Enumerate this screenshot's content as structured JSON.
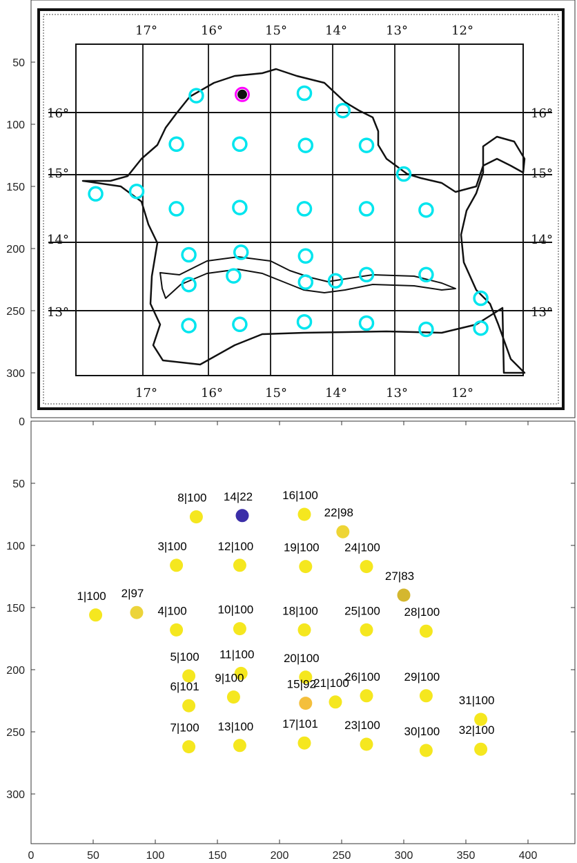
{
  "chart_data": [
    {
      "type": "scatter",
      "description_free": true,
      "y_reversed": true,
      "ylim": [
        0,
        330
      ],
      "y_ticks": [
        50,
        100,
        150,
        200,
        250,
        300
      ],
      "y_tick_labels": [
        "50",
        "100",
        "150",
        "200",
        "250",
        "300"
      ],
      "map_grid_labels_top": [
        "17°",
        "16°",
        "15°",
        "14°",
        "13°",
        "12°"
      ],
      "map_grid_labels_bottom": [
        "17°",
        "16°",
        "15°",
        "14°",
        "13°",
        "12°"
      ],
      "map_grid_labels_left": [
        "16°",
        "15°",
        "14°",
        "13°"
      ],
      "map_grid_labels_right": [
        "16°",
        "15°",
        "14°",
        "13°"
      ],
      "circle_color": "#00e5ee",
      "highlight_color": "#ff00ff",
      "circles": [
        {
          "x": 52,
          "y": 156
        },
        {
          "x": 85,
          "y": 154
        },
        {
          "x": 117,
          "y": 116
        },
        {
          "x": 117,
          "y": 168
        },
        {
          "x": 127,
          "y": 205
        },
        {
          "x": 127,
          "y": 229
        },
        {
          "x": 127,
          "y": 262
        },
        {
          "x": 133,
          "y": 77
        },
        {
          "x": 163,
          "y": 222
        },
        {
          "x": 168,
          "y": 167
        },
        {
          "x": 169,
          "y": 203
        },
        {
          "x": 168,
          "y": 116
        },
        {
          "x": 168,
          "y": 261
        },
        {
          "x": 220,
          "y": 75
        },
        {
          "x": 221,
          "y": 227
        },
        {
          "x": 220,
          "y": 168
        },
        {
          "x": 220,
          "y": 259
        },
        {
          "x": 221,
          "y": 206
        },
        {
          "x": 221,
          "y": 117
        },
        {
          "x": 245,
          "y": 226
        },
        {
          "x": 251,
          "y": 89
        },
        {
          "x": 270,
          "y": 260
        },
        {
          "x": 270,
          "y": 117
        },
        {
          "x": 270,
          "y": 168
        },
        {
          "x": 270,
          "y": 221
        },
        {
          "x": 300,
          "y": 140
        },
        {
          "x": 318,
          "y": 169
        },
        {
          "x": 318,
          "y": 221
        },
        {
          "x": 318,
          "y": 265
        },
        {
          "x": 362,
          "y": 264
        },
        {
          "x": 362,
          "y": 240
        }
      ],
      "highlight": {
        "x": 170,
        "y": 76
      }
    },
    {
      "type": "scatter",
      "y_reversed": true,
      "xlim": [
        0,
        440
      ],
      "ylim": [
        0,
        340
      ],
      "x_ticks": [
        0,
        50,
        100,
        150,
        200,
        250,
        300,
        350,
        400
      ],
      "x_tick_labels": [
        "0",
        "50",
        "100",
        "150",
        "200",
        "250",
        "300",
        "350",
        "400"
      ],
      "y_ticks": [
        0,
        50,
        100,
        150,
        200,
        250,
        300
      ],
      "y_tick_labels": [
        "0",
        "50",
        "100",
        "150",
        "200",
        "250",
        "300"
      ],
      "points": [
        {
          "label": "1|100",
          "x": 52,
          "y": 156,
          "color": "#f5e71f"
        },
        {
          "label": "2|97",
          "x": 85,
          "y": 154,
          "color": "#ecd43a"
        },
        {
          "label": "3|100",
          "x": 117,
          "y": 116,
          "color": "#f5e71f"
        },
        {
          "label": "4|100",
          "x": 117,
          "y": 168,
          "color": "#f5e71f"
        },
        {
          "label": "5|100",
          "x": 127,
          "y": 205,
          "color": "#f5e71f"
        },
        {
          "label": "6|101",
          "x": 127,
          "y": 229,
          "color": "#f5e71f"
        },
        {
          "label": "7|100",
          "x": 127,
          "y": 262,
          "color": "#f5e71f"
        },
        {
          "label": "8|100",
          "x": 133,
          "y": 77,
          "color": "#f5e71f"
        },
        {
          "label": "9|100",
          "x": 163,
          "y": 222,
          "color": "#f5e71f"
        },
        {
          "label": "10|100",
          "x": 168,
          "y": 167,
          "color": "#f5e71f"
        },
        {
          "label": "11|100",
          "x": 169,
          "y": 203,
          "color": "#f5e71f"
        },
        {
          "label": "12|100",
          "x": 168,
          "y": 116,
          "color": "#f5e71f"
        },
        {
          "label": "13|100",
          "x": 168,
          "y": 261,
          "color": "#f5e71f"
        },
        {
          "label": "14|22",
          "x": 170,
          "y": 76,
          "color": "#3b2ea8"
        },
        {
          "label": "15|92",
          "x": 221,
          "y": 227,
          "color": "#f4bf3c"
        },
        {
          "label": "16|100",
          "x": 220,
          "y": 75,
          "color": "#f5e71f"
        },
        {
          "label": "17|101",
          "x": 220,
          "y": 259,
          "color": "#f5e71f"
        },
        {
          "label": "18|100",
          "x": 220,
          "y": 168,
          "color": "#f5e71f"
        },
        {
          "label": "19|100",
          "x": 221,
          "y": 117,
          "color": "#f5e71f"
        },
        {
          "label": "20|100",
          "x": 221,
          "y": 206,
          "color": "#f5e71f"
        },
        {
          "label": "21|100",
          "x": 245,
          "y": 226,
          "color": "#f5e71f"
        },
        {
          "label": "22|98",
          "x": 251,
          "y": 89,
          "color": "#eed535"
        },
        {
          "label": "23|100",
          "x": 270,
          "y": 260,
          "color": "#f5e71f"
        },
        {
          "label": "24|100",
          "x": 270,
          "y": 117,
          "color": "#f5e71f"
        },
        {
          "label": "25|100",
          "x": 270,
          "y": 168,
          "color": "#f5e71f"
        },
        {
          "label": "26|100",
          "x": 270,
          "y": 221,
          "color": "#f5e71f"
        },
        {
          "label": "27|83",
          "x": 300,
          "y": 140,
          "color": "#d4b72f"
        },
        {
          "label": "28|100",
          "x": 318,
          "y": 169,
          "color": "#f5e71f"
        },
        {
          "label": "29|100",
          "x": 318,
          "y": 221,
          "color": "#f5e71f"
        },
        {
          "label": "30|100",
          "x": 318,
          "y": 265,
          "color": "#f5e71f"
        },
        {
          "label": "31|100",
          "x": 362,
          "y": 240,
          "color": "#f5e71f"
        },
        {
          "label": "32|100",
          "x": 362,
          "y": 264,
          "color": "#f5e71f"
        }
      ]
    }
  ]
}
